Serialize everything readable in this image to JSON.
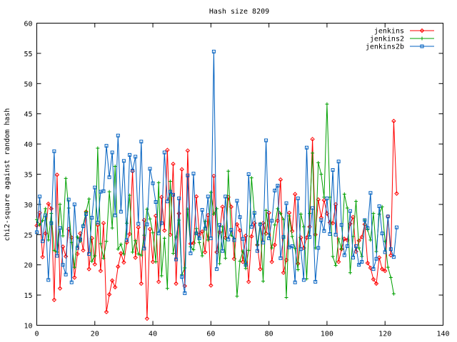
{
  "chart_data": {
    "type": "line",
    "title": "Hash size 8209",
    "xlabel": "",
    "ylabel": "chi2-square against random hash",
    "xlim": [
      0,
      140
    ],
    "ylim": [
      10,
      60
    ],
    "xticks": [
      0,
      20,
      40,
      60,
      80,
      100,
      120,
      140
    ],
    "yticks": [
      10,
      15,
      20,
      25,
      30,
      35,
      40,
      45,
      50,
      55,
      60
    ],
    "grid": false,
    "legend": "top-right",
    "series": [
      {
        "name": "jenkins",
        "color": "#ff0000",
        "marker": "diamond",
        "values": [
          26.5,
          28.6,
          21.3,
          25.2,
          30.1,
          29.3,
          14.2,
          34.9,
          16.1,
          23.0,
          21.4,
          25.9,
          24.5,
          17.9,
          21.8,
          25.2,
          22.4,
          28.8,
          19.3,
          24.4,
          20.1,
          26.6,
          19.0,
          26.9,
          12.2,
          15.1,
          17.4,
          16.3,
          19.7,
          21.9,
          20.4,
          23.7,
          25.1,
          35.5,
          21.2,
          26.2,
          16.9,
          27.4,
          11.1,
          25.9,
          20.5,
          28.1,
          17.2,
          31.2,
          25.7,
          39.0,
          25.0,
          36.7,
          16.9,
          28.5,
          35.8,
          16.5,
          38.9,
          23.5,
          23.6,
          31.3,
          25.0,
          25.5,
          22.1,
          28.2,
          16.6,
          34.7,
          22.1,
          25.4,
          29.6,
          24.5,
          31.2,
          29.6,
          21.0,
          26.7,
          25.7,
          20.5,
          24.8,
          17.2,
          24.7,
          26.9,
          23.3,
          19.3,
          26.9,
          25.2,
          28.6,
          20.5,
          23.3,
          27.3,
          34.1,
          18.7,
          20.8,
          28.6,
          25.6,
          31.7,
          20.2,
          24.5,
          22.8,
          24.5,
          26.3,
          40.8,
          25.0,
          30.8,
          27.8,
          30.7,
          28.5,
          27.0,
          26.9,
          30.0,
          20.5,
          22.6,
          24.3,
          24.1,
          26.8,
          27.9,
          22.2,
          24.0,
          24.6,
          26.7,
          20.3,
          19.5,
          17.6,
          16.9,
          21.2,
          19.3,
          19.0,
          28.0,
          21.6,
          43.8,
          31.8
        ]
      },
      {
        "name": "jenkins2",
        "color": "#00a000",
        "marker": "plus",
        "values": [
          27.5,
          26.6,
          27.3,
          29.3,
          24.1,
          28.5,
          22.4,
          22.1,
          30.0,
          24.8,
          34.3,
          29.4,
          23.7,
          19.6,
          24.6,
          23.9,
          26.6,
          28.8,
          30.9,
          20.6,
          21.5,
          39.3,
          23.5,
          21.1,
          23.9,
          32.1,
          26.1,
          36.3,
          22.6,
          23.4,
          21.8,
          26.9,
          31.5,
          22.1,
          24.0,
          21.8,
          21.6,
          24.9,
          29.2,
          27.6,
          25.3,
          20.5,
          33.6,
          18.2,
          24.4,
          16.1,
          33.8,
          21.9,
          24.6,
          27.4,
          18.4,
          19.5,
          29.2,
          23.0,
          22.5,
          26.0,
          23.7,
          21.5,
          27.2,
          24.1,
          32.0,
          28.4,
          29.3,
          20.2,
          26.3,
          21.1,
          35.5,
          24.9,
          24.4,
          14.8,
          20.6,
          22.3,
          19.4,
          22.4,
          34.4,
          28.4,
          23.3,
          26.8,
          17.3,
          29.0,
          25.1,
          22.8,
          26.6,
          29.3,
          28.5,
          27.5,
          14.6,
          28.1,
          24.7,
          22.7,
          19.2,
          28.4,
          26.3,
          17.7,
          28.5,
          38.5,
          22.8,
          36.9,
          35.0,
          31.2,
          46.6,
          31.2,
          21.4,
          19.9,
          24.3,
          22.6,
          31.7,
          29.4,
          18.7,
          24.7,
          30.5,
          22.8,
          21.4,
          27.4,
          25.8,
          24.1,
          28.5,
          22.2,
          28.4,
          29.6,
          23.9,
          19.6,
          17.9,
          15.2
        ]
      },
      {
        "name": "jenkins2b",
        "color": "#0060c0",
        "marker": "square",
        "values": [
          25.4,
          31.3,
          23.9,
          28.2,
          17.5,
          26.9,
          38.8,
          21.5,
          26.1,
          20.0,
          18.4,
          30.8,
          17.1,
          30.0,
          22.8,
          24.2,
          26.4,
          28.4,
          21.8,
          27.8,
          32.8,
          27.0,
          32.1,
          32.2,
          39.7,
          34.5,
          38.6,
          28.2,
          41.4,
          28.8,
          37.2,
          24.1,
          38.2,
          35.6,
          37.9,
          26.8,
          40.4,
          22.7,
          26.7,
          35.9,
          33.5,
          30.4,
          25.2,
          26.9,
          38.6,
          30.5,
          32.1,
          31.6,
          20.9,
          31.0,
          18.0,
          15.3,
          34.8,
          21.9,
          35.1,
          25.2,
          24.4,
          29.1,
          26.0,
          31.3,
          24.4,
          55.3,
          19.3,
          26.6,
          22.3,
          31.3,
          24.2,
          25.8,
          24.1,
          30.6,
          27.9,
          24.3,
          20.0,
          35.0,
          26.3,
          28.6,
          22.3,
          26.7,
          23.7,
          40.6,
          24.4,
          27.3,
          32.3,
          33.1,
          21.1,
          24.6,
          30.2,
          22.9,
          23.1,
          17.1,
          31.0,
          22.6,
          17.5,
          39.4,
          24.6,
          29.4,
          17.2,
          22.8,
          27.4,
          25.6,
          31.0,
          25.1,
          35.7,
          25.0,
          37.1,
          26.6,
          21.6,
          23.1,
          28.9,
          21.2,
          23.1,
          20.0,
          20.5,
          27.4,
          26.1,
          31.9,
          19.3,
          21.0,
          29.7,
          25.2,
          22.1,
          28.0,
          22.6,
          21.3,
          26.2
        ]
      }
    ]
  }
}
